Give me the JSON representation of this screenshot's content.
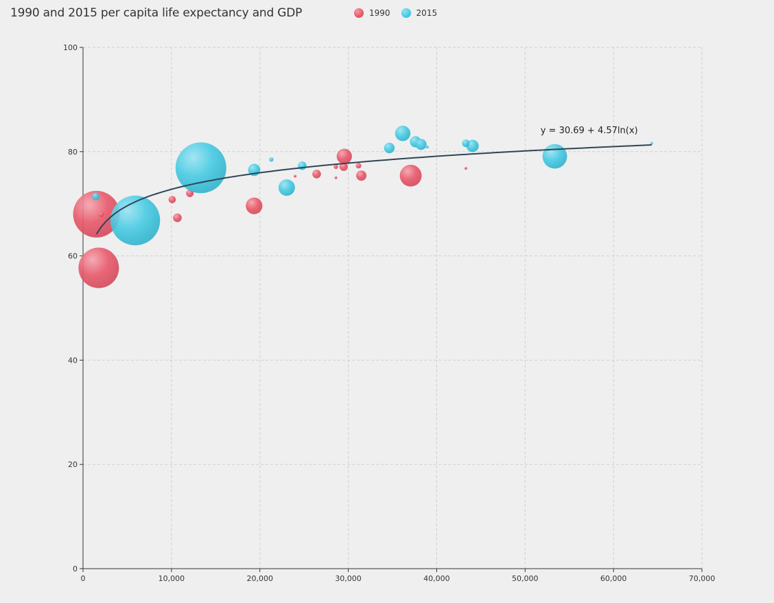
{
  "chart_data": {
    "type": "scatter",
    "title": "1990 and 2015 per capita life expectancy and GDP",
    "xlim": [
      0,
      70000
    ],
    "ylim": [
      0,
      100
    ],
    "x_ticks": [
      0,
      10000,
      20000,
      30000,
      40000,
      50000,
      60000,
      70000
    ],
    "x_tick_labels": [
      "0",
      "10,000",
      "20,000",
      "30,000",
      "40,000",
      "50,000",
      "60,000",
      "70,000"
    ],
    "y_ticks": [
      0,
      20,
      40,
      60,
      80,
      100
    ],
    "y_tick_labels": [
      "0",
      "20",
      "40",
      "60",
      "80",
      "100"
    ],
    "grid": true,
    "legend_position": "top",
    "colors": {
      "1990": "#e8586a",
      "2015": "#46cae3",
      "trend": "#2f4554"
    },
    "series": [
      {
        "name": "1990",
        "points": [
          {
            "x": 1516,
            "y": 68.0,
            "size": 1154605773
          },
          {
            "x": 1777,
            "y": 57.7,
            "size": 870601776
          },
          {
            "x": 2076,
            "y": 67.9,
            "size": 13000000
          },
          {
            "x": 10088,
            "y": 70.8,
            "size": 28000000
          },
          {
            "x": 10670,
            "y": 67.3,
            "size": 40000000
          },
          {
            "x": 12087,
            "y": 72.0,
            "size": 30000000
          },
          {
            "x": 19349,
            "y": 69.6,
            "size": 147568552
          },
          {
            "x": 23987,
            "y": 75.3,
            "size": 4000000
          },
          {
            "x": 26424,
            "y": 75.7,
            "size": 40000000
          },
          {
            "x": 28599,
            "y": 75.0,
            "size": 3000000
          },
          {
            "x": 28599,
            "y": 77.1,
            "size": 10000000
          },
          {
            "x": 29476,
            "y": 77.1,
            "size": 37000000
          },
          {
            "x": 29550,
            "y": 79.1,
            "size": 123000000
          },
          {
            "x": 31163,
            "y": 77.3,
            "size": 16000000
          },
          {
            "x": 31476,
            "y": 75.4,
            "size": 56000000
          },
          {
            "x": 37062,
            "y": 75.4,
            "size": 252847810
          },
          {
            "x": 43294,
            "y": 76.8,
            "size": 3000000
          }
        ]
      },
      {
        "name": "2015",
        "points": [
          {
            "x": 1449,
            "y": 71.4,
            "size": 30000000
          },
          {
            "x": 5903,
            "y": 66.8,
            "size": 1311050527
          },
          {
            "x": 13334,
            "y": 76.9,
            "size": 1371220000
          },
          {
            "x": 19360,
            "y": 76.5,
            "size": 79000000
          },
          {
            "x": 21291,
            "y": 78.5,
            "size": 10000000
          },
          {
            "x": 23038,
            "y": 73.1,
            "size": 143456918
          },
          {
            "x": 24787,
            "y": 77.3,
            "size": 38000000
          },
          {
            "x": 34644,
            "y": 80.7,
            "size": 60000000
          },
          {
            "x": 36162,
            "y": 83.5,
            "size": 126573481
          },
          {
            "x": 37599,
            "y": 81.9,
            "size": 66000000
          },
          {
            "x": 38225,
            "y": 81.4,
            "size": 65000000
          },
          {
            "x": 38923,
            "y": 80.9,
            "size": 5000000
          },
          {
            "x": 43294,
            "y": 81.6,
            "size": 30000000
          },
          {
            "x": 44053,
            "y": 81.1,
            "size": 80688545
          },
          {
            "x": 53354,
            "y": 79.1,
            "size": 321773631
          },
          {
            "x": 64304,
            "y": 81.6,
            "size": 5000000
          }
        ]
      }
    ],
    "trendline": {
      "equation": "y = 30.69 + 4.57ln(x)",
      "a": 30.69,
      "b": 4.57,
      "x_range": [
        1516,
        64304
      ]
    }
  }
}
